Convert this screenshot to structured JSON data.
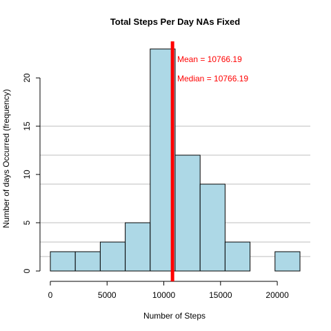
{
  "chart_data": {
    "type": "bar",
    "title": "Total Steps Per Day NAs Fixed",
    "xlabel": "Number of Steps",
    "ylabel": "Number of days Occurred (frequency)",
    "xlim": [
      0,
      22000
    ],
    "ylim": [
      0,
      23
    ],
    "x_ticks": [
      0,
      5000,
      10000,
      15000,
      20000
    ],
    "y_ticks": [
      0,
      5,
      10,
      15,
      20
    ],
    "bins": [
      {
        "from": 0,
        "to": 2200,
        "count": 2
      },
      {
        "from": 2200,
        "to": 4400,
        "count": 2
      },
      {
        "from": 4400,
        "to": 6600,
        "count": 3
      },
      {
        "from": 6600,
        "to": 8800,
        "count": 5
      },
      {
        "from": 8800,
        "to": 11000,
        "count": 23
      },
      {
        "from": 11000,
        "to": 13200,
        "count": 12
      },
      {
        "from": 13200,
        "to": 15400,
        "count": 9
      },
      {
        "from": 15400,
        "to": 17600,
        "count": 3
      },
      {
        "from": 17600,
        "to": 19800,
        "count": 0
      },
      {
        "from": 19800,
        "to": 22000,
        "count": 2
      }
    ],
    "grid_lines_y": [
      1.5,
      3,
      5,
      9,
      12,
      15
    ],
    "bar_color": "#add8e6",
    "grid_color": "#bebebe",
    "mean": 10766.19,
    "median": 10766.19,
    "annotation_color": "#ff0000",
    "annotations": [
      "Mean =  10766.19",
      "Median =  10766.19"
    ]
  }
}
